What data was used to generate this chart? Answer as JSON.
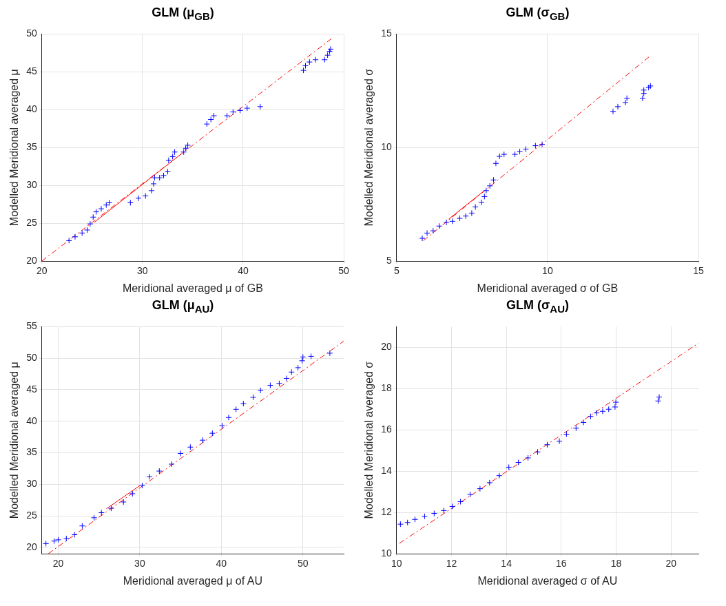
{
  "chart_data": [
    {
      "type": "scatter",
      "title": "GLM (μ$_{GB}$)",
      "xlabel": "Meridional averaged μ of GB",
      "ylabel": "Modelled Meridional averaged μ",
      "xlim": [
        20,
        50
      ],
      "ylim": [
        20,
        50
      ],
      "xticks": [
        20,
        30,
        40,
        50
      ],
      "yticks": [
        20,
        25,
        30,
        35,
        40,
        45,
        50
      ],
      "grid": true,
      "series": [
        {
          "type": "scatter",
          "color": "#0000ff",
          "marker": "cross",
          "x": [
            22.7,
            23.3,
            24.0,
            24.5,
            24.8,
            25.1,
            25.4,
            25.9,
            26.4,
            26.7,
            28.8,
            29.6,
            30.3,
            30.9,
            31.1,
            31.2,
            31.7,
            32.1,
            32.5,
            32.6,
            33.0,
            33.2,
            34.1,
            34.3,
            34.5,
            36.4,
            36.8,
            37.1,
            38.4,
            39.0,
            39.7,
            40.4,
            41.7,
            46.0,
            46.2,
            46.6,
            47.2,
            48.1,
            48.4,
            48.6,
            48.7
          ],
          "values": [
            22.7,
            23.2,
            23.7,
            24.1,
            24.9,
            25.8,
            26.5,
            26.9,
            27.4,
            27.7,
            27.7,
            28.3,
            28.6,
            29.3,
            30.2,
            31.0,
            31.0,
            31.3,
            31.8,
            33.3,
            33.8,
            34.4,
            34.4,
            34.9,
            35.3,
            38.1,
            38.7,
            39.2,
            39.2,
            39.7,
            39.9,
            40.2,
            40.4,
            45.2,
            45.8,
            46.3,
            46.6,
            46.6,
            47.2,
            47.7,
            48.0
          ]
        },
        {
          "type": "line",
          "color": "#ff0000",
          "line_style": "dashed",
          "x": [
            20,
            48.8
          ],
          "values": [
            20,
            49.4
          ]
        },
        {
          "type": "line",
          "color": "#ff0000",
          "line_style": "solid",
          "x": [
            25.2,
            33.8
          ],
          "values": [
            25.1,
            34.1
          ]
        }
      ]
    },
    {
      "type": "scatter",
      "title": "GLM (σ$_{GB}$)",
      "xlabel": "Meridional averaged σ of GB",
      "ylabel": "Modelled Meridional averaged σ",
      "xlim": [
        5,
        15
      ],
      "ylim": [
        5,
        15
      ],
      "xticks": [
        5,
        10,
        15
      ],
      "yticks": [
        5,
        10,
        15
      ],
      "grid": true,
      "series": [
        {
          "type": "scatter",
          "color": "#0000ff",
          "marker": "cross",
          "x": [
            5.85,
            6.01,
            6.21,
            6.41,
            6.65,
            6.85,
            7.09,
            7.29,
            7.49,
            7.61,
            7.81,
            7.91,
            7.97,
            8.09,
            8.21,
            8.29,
            8.41,
            8.56,
            8.92,
            9.08,
            9.28,
            9.6,
            9.82,
            12.17,
            12.33,
            12.58,
            12.63,
            13.15,
            13.19,
            13.19,
            13.35,
            13.41
          ],
          "values": [
            6.0,
            6.23,
            6.33,
            6.54,
            6.7,
            6.75,
            6.88,
            6.98,
            7.11,
            7.38,
            7.58,
            7.84,
            8.1,
            8.31,
            8.57,
            9.3,
            9.61,
            9.7,
            9.7,
            9.82,
            9.93,
            10.08,
            10.14,
            11.59,
            11.8,
            11.98,
            12.17,
            12.17,
            12.38,
            12.53,
            12.64,
            12.71
          ]
        },
        {
          "type": "line",
          "color": "#ff0000",
          "line_style": "dashed",
          "x": [
            5.89,
            13.37
          ],
          "values": [
            5.9,
            14.0
          ]
        },
        {
          "type": "line",
          "color": "#ff0000",
          "line_style": "solid",
          "x": [
            6.73,
            7.91
          ],
          "values": [
            6.85,
            8.1
          ]
        }
      ]
    },
    {
      "type": "scatter",
      "title": "GLM (μ$_{AU}$)",
      "xlabel": "Meridional averaged μ of AU",
      "ylabel": "Modelled Meridional averaged μ",
      "xlim": [
        18,
        55
      ],
      "ylim": [
        19,
        55
      ],
      "xticks": [
        20,
        30,
        40,
        50
      ],
      "yticks": [
        20,
        25,
        30,
        35,
        40,
        45,
        50,
        55
      ],
      "grid": true,
      "series": [
        {
          "type": "scatter",
          "color": "#0000ff",
          "marker": "cross",
          "x": [
            18.5,
            19.5,
            20.0,
            21.0,
            22.0,
            22.95,
            24.4,
            25.3,
            26.5,
            28.0,
            29.1,
            30.3,
            31.2,
            32.4,
            33.9,
            35.0,
            36.2,
            37.7,
            38.9,
            40.1,
            40.9,
            41.8,
            42.7,
            43.9,
            44.8,
            46.0,
            47.1,
            48.0,
            48.6,
            49.4,
            49.9,
            50.0,
            51.0,
            53.3
          ],
          "values": [
            20.6,
            21.0,
            21.2,
            21.4,
            22.0,
            23.4,
            24.7,
            25.5,
            26.2,
            27.2,
            28.5,
            29.8,
            31.2,
            32.1,
            33.2,
            34.9,
            35.9,
            37.0,
            38.1,
            39.3,
            40.6,
            41.9,
            42.8,
            43.8,
            44.9,
            45.7,
            46.0,
            46.8,
            47.8,
            48.5,
            49.6,
            50.2,
            50.3,
            50.8
          ]
        },
        {
          "type": "line",
          "color": "#ff0000",
          "line_style": "dashed",
          "x": [
            18.8,
            55
          ],
          "values": [
            19.0,
            52.7
          ]
        },
        {
          "type": "line",
          "color": "#ff0000",
          "line_style": "solid",
          "x": [
            25.9,
            30.0
          ],
          "values": [
            26.1,
            29.8
          ]
        }
      ]
    },
    {
      "type": "scatter",
      "title": "GLM (σ$_{AU}$)",
      "xlabel": "Meridional averaged σ of AU",
      "ylabel": "Modelled Meridional averaged σ",
      "xlim": [
        10,
        21
      ],
      "ylim": [
        10,
        21
      ],
      "xticks": [
        10,
        12,
        14,
        16,
        18,
        20
      ],
      "yticks": [
        10,
        12,
        14,
        16,
        18,
        20
      ],
      "grid": true,
      "series": [
        {
          "type": "scatter",
          "color": "#0000ff",
          "marker": "cross",
          "x": [
            10.14,
            10.4,
            10.67,
            11.02,
            11.37,
            11.72,
            12.03,
            12.33,
            12.68,
            13.04,
            13.39,
            13.74,
            14.09,
            14.44,
            14.79,
            15.14,
            15.49,
            15.93,
            16.19,
            16.54,
            16.81,
            17.07,
            17.29,
            17.51,
            17.73,
            17.96,
            17.99,
            19.53,
            19.57
          ],
          "values": [
            11.43,
            11.51,
            11.66,
            11.81,
            11.95,
            12.09,
            12.29,
            12.52,
            12.87,
            13.15,
            13.44,
            13.78,
            14.19,
            14.42,
            14.64,
            14.93,
            15.28,
            15.45,
            15.79,
            16.08,
            16.36,
            16.65,
            16.82,
            16.9,
            17.0,
            17.11,
            17.34,
            17.4,
            17.59
          ]
        },
        {
          "type": "line",
          "color": "#ff0000",
          "line_style": "dashed",
          "x": [
            10.1,
            21
          ],
          "values": [
            10.5,
            20.2
          ]
        }
      ]
    }
  ]
}
